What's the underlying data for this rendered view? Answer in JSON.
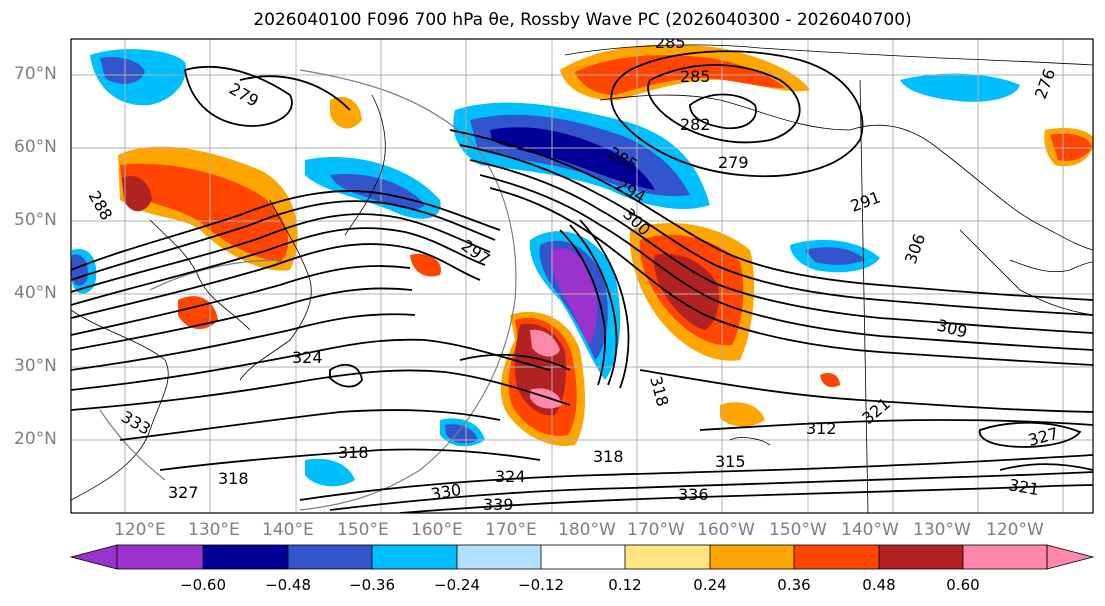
{
  "title": "2026040100 F096 700 hPa θe, Rossby Wave PC (2026040300 - 2026040700)",
  "map": {
    "lat_labels": [
      "70°N",
      "60°N",
      "50°N",
      "40°N",
      "30°N",
      "20°N"
    ],
    "lon_labels": [
      "120°E",
      "130°E",
      "140°E",
      "150°E",
      "160°E",
      "170°E",
      "180°W",
      "170°W",
      "160°W",
      "150°W",
      "140°W",
      "130°W",
      "120°W"
    ],
    "contour_labels": [
      "285",
      "279",
      "285",
      "282",
      "279",
      "285",
      "294",
      "300",
      "291",
      "297",
      "306",
      "309",
      "324",
      "318",
      "312",
      "321",
      "327",
      "318",
      "315",
      "321",
      "324",
      "330",
      "339",
      "336",
      "333",
      "318",
      "327",
      "318",
      "288",
      "276"
    ]
  },
  "colorbar": {
    "tick_labels": [
      "−0.60",
      "−0.48",
      "−0.36",
      "−0.24",
      "−0.12",
      "0.12",
      "0.24",
      "0.36",
      "0.48",
      "0.60"
    ],
    "colors": [
      "#9933cc",
      "#000099",
      "#3355cc",
      "#00bfff",
      "#b3e0ff",
      "#ffffff",
      "#ffe680",
      "#ffa500",
      "#ff4500",
      "#b22222",
      "#ff88aa"
    ]
  }
}
